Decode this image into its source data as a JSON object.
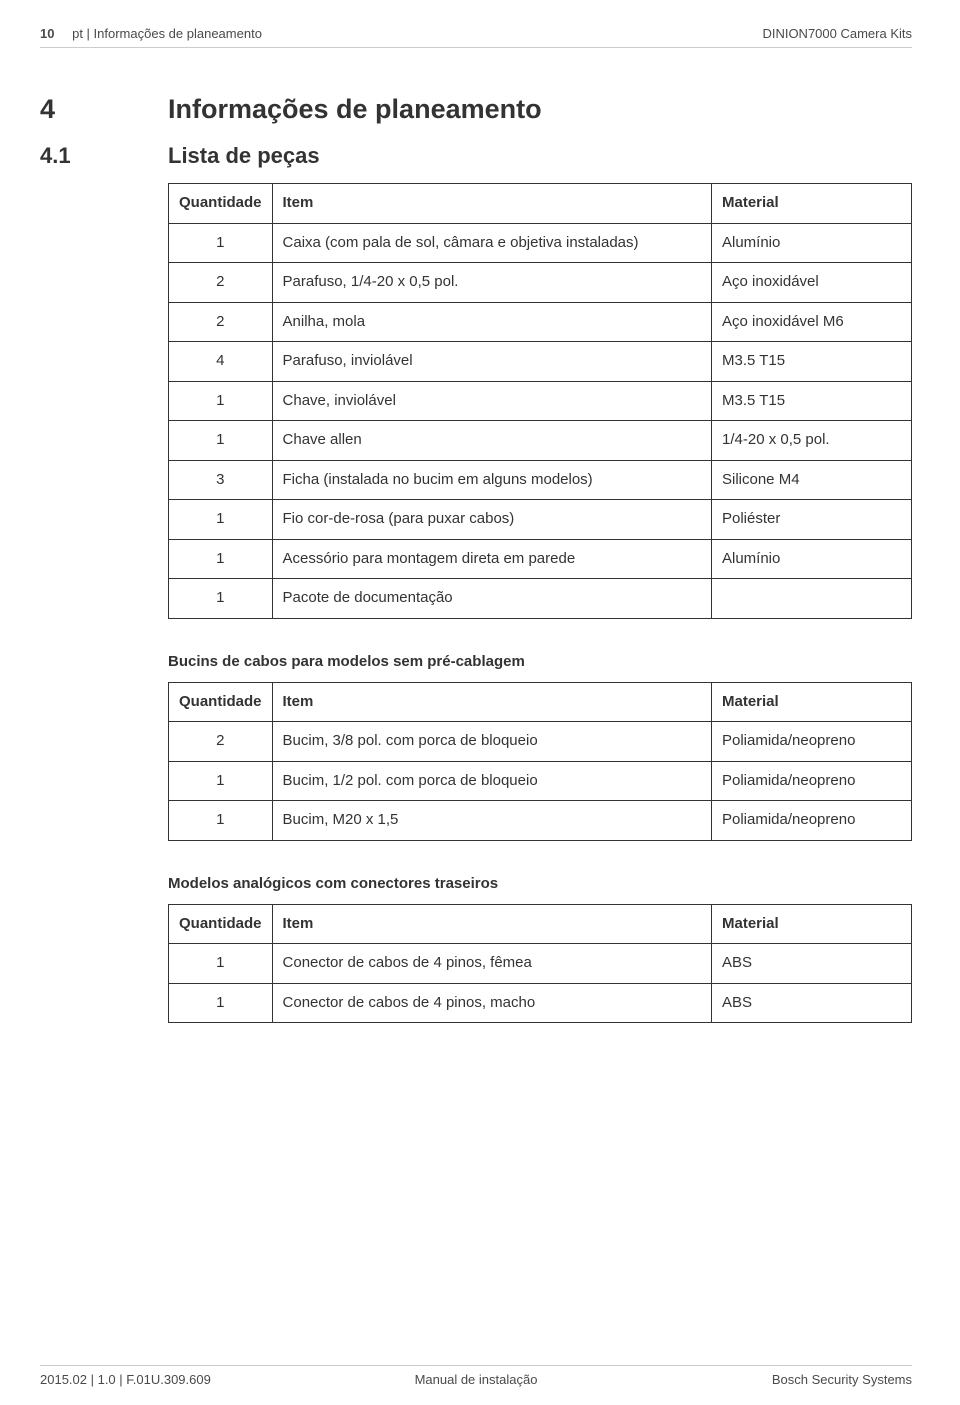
{
  "header": {
    "page_number": "10",
    "breadcrumb": "pt | Informações de planeamento",
    "product": "DINION7000 Camera Kits"
  },
  "section": {
    "number": "4",
    "title": "Informações de planeamento"
  },
  "subsection": {
    "number": "4.1",
    "title": "Lista de peças"
  },
  "table1": {
    "columns": {
      "qty": "Quantidade",
      "item": "Item",
      "material": "Material"
    },
    "rows": [
      {
        "qty": "1",
        "item": "Caixa (com pala de sol, câmara e objetiva instaladas)",
        "material": "Alumínio"
      },
      {
        "qty": "2",
        "item": "Parafuso, 1/4-20 x 0,5 pol.",
        "material": "Aço inoxidável"
      },
      {
        "qty": "2",
        "item": "Anilha, mola",
        "material": "Aço inoxidável M6"
      },
      {
        "qty": "4",
        "item": "Parafuso, inviolável",
        "material": "M3.5 T15"
      },
      {
        "qty": "1",
        "item": "Chave, inviolável",
        "material": "M3.5 T15"
      },
      {
        "qty": "1",
        "item": "Chave allen",
        "material": "1/4-20 x 0,5 pol."
      },
      {
        "qty": "3",
        "item": "Ficha (instalada no bucim em alguns modelos)",
        "material": "Silicone M4"
      },
      {
        "qty": "1",
        "item": "Fio cor-de-rosa (para puxar cabos)",
        "material": "Poliéster"
      },
      {
        "qty": "1",
        "item": "Acessório para montagem direta em parede",
        "material": "Alumínio"
      },
      {
        "qty": "1",
        "item": "Pacote de documentação",
        "material": ""
      }
    ]
  },
  "table2": {
    "caption": "Bucins de cabos para modelos sem pré-cablagem",
    "columns": {
      "qty": "Quantidade",
      "item": "Item",
      "material": "Material"
    },
    "rows": [
      {
        "qty": "2",
        "item": "Bucim, 3/8 pol. com porca de bloqueio",
        "material": "Poliamida/neopreno"
      },
      {
        "qty": "1",
        "item": "Bucim, 1/2 pol. com porca de bloqueio",
        "material": "Poliamida/neopreno"
      },
      {
        "qty": "1",
        "item": "Bucim, M20 x 1,5",
        "material": "Poliamida/neopreno"
      }
    ]
  },
  "table3": {
    "caption": "Modelos analógicos com conectores traseiros",
    "columns": {
      "qty": "Quantidade",
      "item": "Item",
      "material": "Material"
    },
    "rows": [
      {
        "qty": "1",
        "item": "Conector de cabos de 4 pinos, fêmea",
        "material": "ABS"
      },
      {
        "qty": "1",
        "item": "Conector de cabos de 4 pinos, macho",
        "material": "ABS"
      }
    ]
  },
  "footer": {
    "left": "2015.02 | 1.0 | F.01U.309.609",
    "center": "Manual de instalação",
    "right": "Bosch Security Systems"
  },
  "colors": {
    "text": "#333333",
    "border": "#333333",
    "divider": "#cccccc",
    "background": "#ffffff"
  }
}
